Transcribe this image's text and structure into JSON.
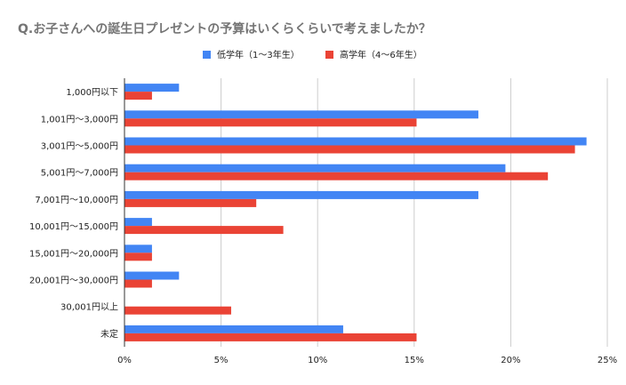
{
  "chart_data": {
    "type": "bar",
    "orientation": "horizontal",
    "title": "Q.お子さんへの誕生日プレゼントの予算はいくらくらいで考えましたか？",
    "categories": [
      "1,000円以下",
      "1,001円～3,000円",
      "3,001円～5,000円",
      "5,001円～7,000円",
      "7,001円～10,000円",
      "10,001円～15,000円",
      "15,001円～20,000円",
      "20,001円～30,000円",
      "30,001円以上",
      "未定"
    ],
    "series": [
      {
        "name": "低学年（1～3年生）",
        "color": "#4285f4",
        "values": [
          2.8,
          18.3,
          23.9,
          19.7,
          18.3,
          1.4,
          1.4,
          2.8,
          0,
          11.3
        ]
      },
      {
        "name": "高学年（4～6年生）",
        "color": "#ea4335",
        "values": [
          1.4,
          15.1,
          23.3,
          21.9,
          6.8,
          8.2,
          1.4,
          1.4,
          5.5,
          15.1
        ]
      }
    ],
    "xlim": [
      0,
      25
    ],
    "xticks": [
      "0%",
      "5%",
      "10%",
      "15%",
      "20%",
      "25%"
    ],
    "xtick_values": [
      0,
      5,
      10,
      15,
      20,
      25
    ],
    "xlabel": "",
    "ylabel": "",
    "grid": true,
    "legend_position": "top-center"
  }
}
